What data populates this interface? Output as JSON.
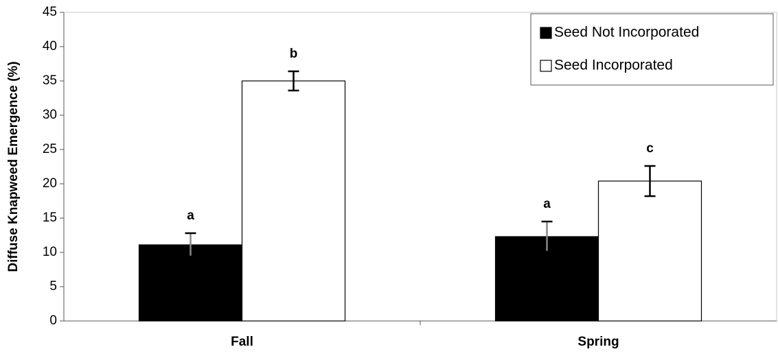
{
  "chart_data": {
    "type": "bar",
    "y_label": "Diffuse Knapweed Emergence (%)",
    "categories": [
      "Fall",
      "Spring"
    ],
    "series": [
      {
        "name": "Seed Not Incorporated",
        "color": "#000000",
        "error_color": "#888888",
        "values": [
          11.1,
          12.3
        ],
        "errors": [
          1.7,
          2.2
        ],
        "letters": [
          "a",
          "a"
        ]
      },
      {
        "name": "Seed Incorporated",
        "color": "#ffffff",
        "error_color": "#000000",
        "values": [
          35.0,
          20.4
        ],
        "errors": [
          1.4,
          2.2
        ],
        "letters": [
          "b",
          "c"
        ]
      }
    ],
    "ylim": [
      0,
      45
    ],
    "yticks": [
      0,
      5,
      10,
      15,
      20,
      25,
      30,
      35,
      40,
      45
    ],
    "grid": false,
    "legend": "upper right"
  }
}
